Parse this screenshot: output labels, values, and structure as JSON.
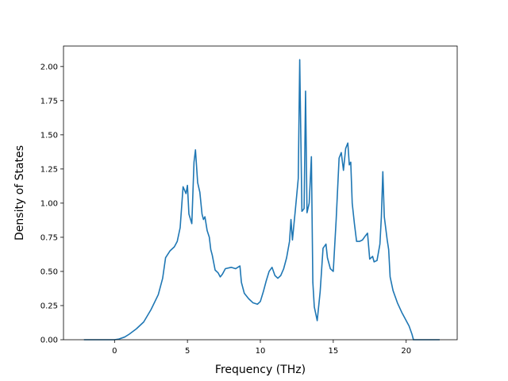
{
  "chart_data": {
    "type": "line",
    "title": "",
    "xlabel": "Frequency (THz)",
    "ylabel": "Density of States",
    "xlim": [
      -3.5,
      23.5
    ],
    "ylim": [
      0,
      2.15
    ],
    "xticks": [
      0,
      5,
      10,
      15,
      20
    ],
    "xtick_labels": [
      "0",
      "5",
      "10",
      "15",
      "20"
    ],
    "yticks": [
      0,
      0.25,
      0.5,
      0.75,
      1.0,
      1.25,
      1.5,
      1.75,
      2.0
    ],
    "ytick_labels": [
      "0.00",
      "0.25",
      "0.50",
      "0.75",
      "1.00",
      "1.25",
      "1.50",
      "1.75",
      "2.00"
    ],
    "grid": false,
    "line_color": "#1f77b4",
    "series": [
      {
        "x": [
          -2.1,
          -1.0,
          0.0,
          0.3,
          0.7,
          1.0,
          1.5,
          2.0,
          2.5,
          3.0,
          3.3,
          3.5,
          3.8,
          4.1,
          4.3,
          4.5,
          4.7,
          4.9,
          5.0,
          5.1,
          5.3,
          5.45,
          5.55,
          5.7,
          5.85,
          6.0,
          6.1,
          6.2,
          6.35,
          6.5,
          6.6,
          6.7,
          6.9,
          7.1,
          7.25,
          7.4,
          7.6,
          8.0,
          8.3,
          8.6,
          8.7,
          8.9,
          9.2,
          9.5,
          9.8,
          10.0,
          10.2,
          10.4,
          10.6,
          10.8,
          11.0,
          11.2,
          11.4,
          11.6,
          11.8,
          12.0,
          12.1,
          12.2,
          12.4,
          12.6,
          12.7,
          12.85,
          13.0,
          13.1,
          13.2,
          13.35,
          13.5,
          13.6,
          13.7,
          13.9,
          14.1,
          14.3,
          14.5,
          14.6,
          14.8,
          15.0,
          15.2,
          15.4,
          15.55,
          15.7,
          15.85,
          16.0,
          16.1,
          16.2,
          16.3,
          16.45,
          16.6,
          16.8,
          17.0,
          17.2,
          17.35,
          17.5,
          17.7,
          17.8,
          18.0,
          18.2,
          18.3,
          18.4,
          18.5,
          18.7,
          18.8,
          18.9,
          19.1,
          19.4,
          19.7,
          20.0,
          20.2,
          20.4,
          20.5,
          21.0,
          22.3
        ],
        "y": [
          0.0,
          0.0,
          0.0,
          0.005,
          0.02,
          0.04,
          0.08,
          0.13,
          0.22,
          0.33,
          0.45,
          0.6,
          0.65,
          0.68,
          0.72,
          0.82,
          1.12,
          1.07,
          1.13,
          0.92,
          0.85,
          1.3,
          1.39,
          1.15,
          1.08,
          0.92,
          0.88,
          0.9,
          0.8,
          0.75,
          0.66,
          0.62,
          0.51,
          0.49,
          0.46,
          0.48,
          0.52,
          0.53,
          0.52,
          0.54,
          0.42,
          0.34,
          0.3,
          0.27,
          0.26,
          0.28,
          0.35,
          0.43,
          0.5,
          0.53,
          0.47,
          0.45,
          0.47,
          0.52,
          0.6,
          0.72,
          0.88,
          0.73,
          0.95,
          1.18,
          2.05,
          0.94,
          0.96,
          1.82,
          0.93,
          1.0,
          1.34,
          0.42,
          0.24,
          0.14,
          0.35,
          0.67,
          0.7,
          0.6,
          0.52,
          0.5,
          0.88,
          1.33,
          1.37,
          1.24,
          1.4,
          1.44,
          1.28,
          1.3,
          1.0,
          0.85,
          0.72,
          0.72,
          0.73,
          0.76,
          0.78,
          0.59,
          0.61,
          0.57,
          0.58,
          0.7,
          0.9,
          1.23,
          0.9,
          0.73,
          0.66,
          0.46,
          0.36,
          0.27,
          0.2,
          0.14,
          0.1,
          0.04,
          0.0,
          0.0,
          0.0
        ]
      }
    ]
  }
}
